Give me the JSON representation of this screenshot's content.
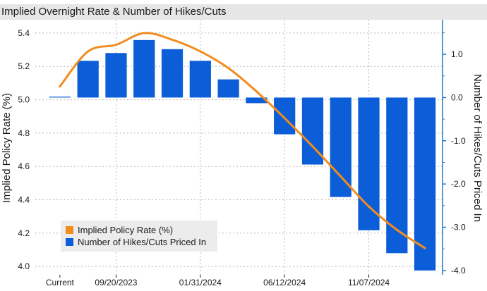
{
  "chart_data": {
    "type": "bar",
    "title": "Implied Overnight Rate & Number of Hikes/Cuts",
    "categories": [
      "Current",
      "",
      "09/20/2023",
      "",
      "",
      "01/31/2024",
      "",
      "",
      "06/12/2024",
      "",
      "",
      "11/07/2024",
      "",
      ""
    ],
    "x_tick_labels": [
      "Current",
      "09/20/2023",
      "01/31/2024",
      "06/12/2024",
      "11/07/2024"
    ],
    "ylabel": "Implied Policy Rate (%)",
    "y2label": "Number of Hikes/Cuts Priced In",
    "ylim": [
      3.95,
      5.48
    ],
    "y_ticks": [
      4.0,
      4.2,
      4.4,
      4.6,
      4.8,
      5.0,
      5.2,
      5.4
    ],
    "y2lim": [
      -4.1,
      1.8
    ],
    "y2_ticks": [
      -4.0,
      -3.0,
      -2.0,
      -1.0,
      0.0,
      1.0
    ],
    "grid": true,
    "legend_position": "bottom-left",
    "series": [
      {
        "name": "Implied Policy Rate (%)",
        "type": "line",
        "axis": "left",
        "color": "#f28c1e",
        "values": [
          5.08,
          5.29,
          5.33,
          5.4,
          5.36,
          5.29,
          5.19,
          5.05,
          4.89,
          4.72,
          4.54,
          4.36,
          4.22,
          4.11
        ]
      },
      {
        "name": "Number of Hikes/Cuts Priced In",
        "type": "bar",
        "axis": "right",
        "color": "#0b5ed7",
        "values": [
          0.02,
          0.85,
          1.03,
          1.33,
          1.12,
          0.85,
          0.42,
          -0.13,
          -0.85,
          -1.55,
          -2.3,
          -3.07,
          -3.6,
          -4.0
        ]
      }
    ]
  }
}
